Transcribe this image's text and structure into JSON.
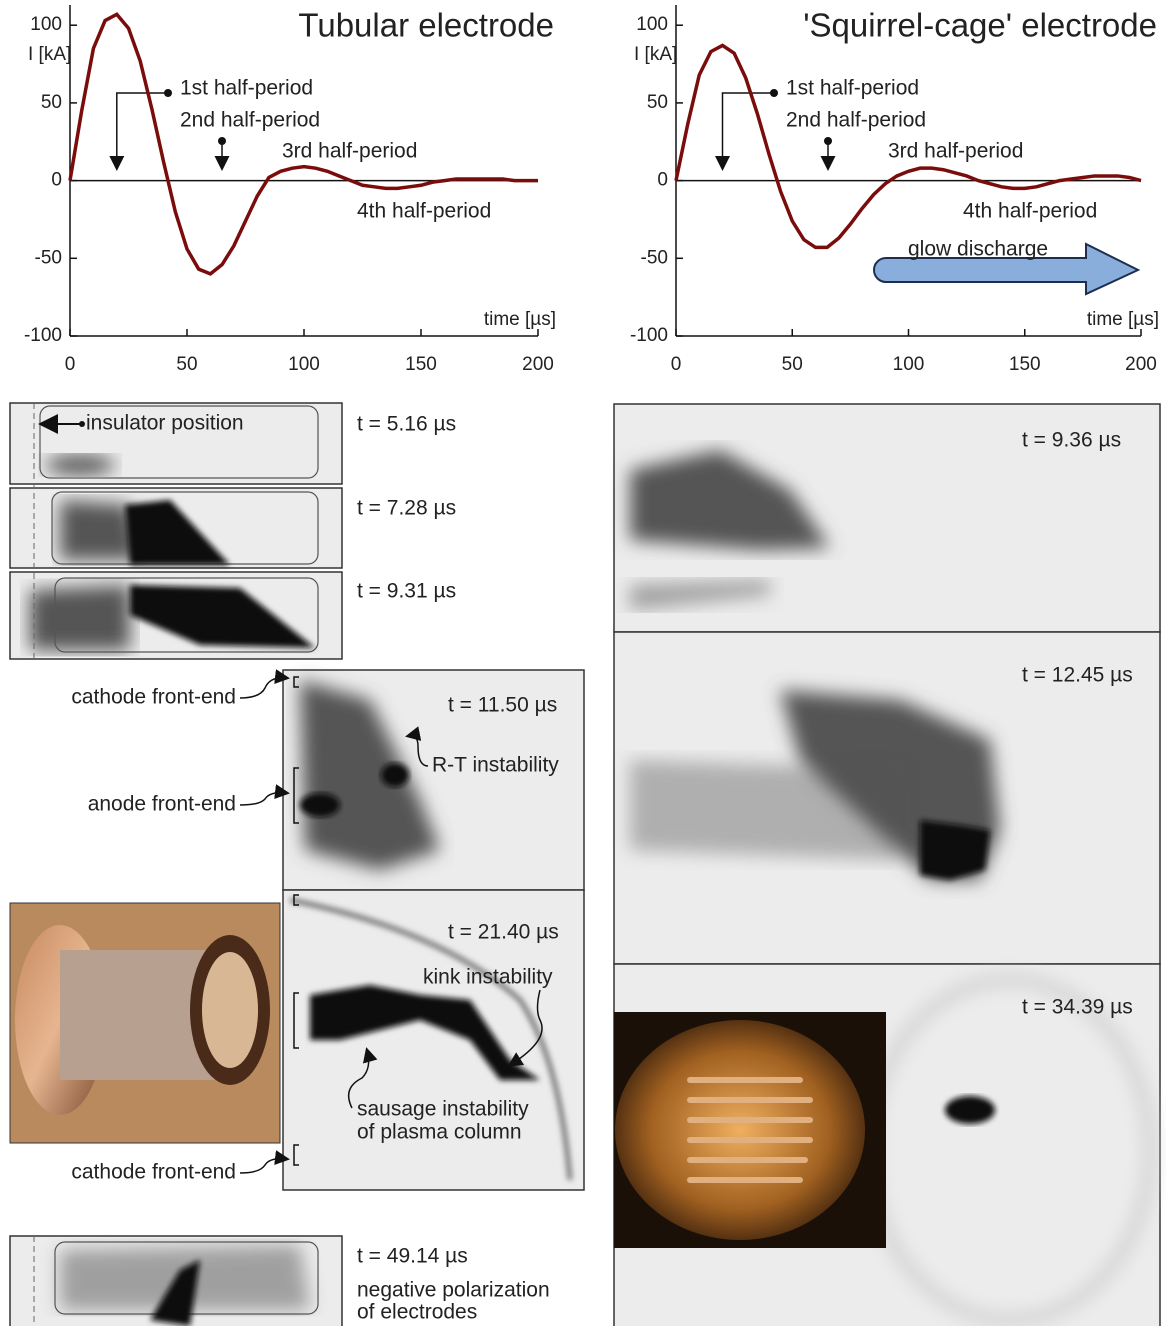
{
  "chart_data": [
    {
      "type": "line",
      "title": "Tubular electrode",
      "y_label": "I [kA]",
      "x_label": "time [µs]",
      "x": [
        0,
        5,
        10,
        15,
        20,
        25,
        30,
        35,
        40,
        45,
        50,
        55,
        60,
        65,
        70,
        75,
        80,
        85,
        90,
        95,
        100,
        105,
        110,
        115,
        120,
        125,
        130,
        135,
        140,
        145,
        150,
        155,
        160,
        165,
        170,
        175,
        180,
        185,
        190,
        195,
        200
      ],
      "values": [
        0,
        45,
        85,
        103,
        107,
        98,
        77,
        46,
        12,
        -20,
        -44,
        -57,
        -60,
        -54,
        -42,
        -26,
        -10,
        2,
        6,
        8,
        9,
        8,
        6,
        3,
        0,
        -3,
        -4,
        -5,
        -5,
        -4,
        -3,
        -1,
        0,
        1,
        1,
        1,
        1,
        1,
        0,
        0,
        0
      ],
      "color": "#7a0c0c",
      "annotations": [
        "1st half-period",
        "2nd half-period",
        "3rd half-period",
        "4th half-period"
      ],
      "xlim": [
        0,
        200
      ],
      "ylim": [
        -100,
        113
      ],
      "xticks": [
        0,
        50,
        100,
        150,
        200
      ],
      "yticks": [
        100,
        50,
        0,
        -50,
        -100
      ]
    },
    {
      "type": "line",
      "title": "'Squirrel-cage' electrode",
      "y_label": "I [kA]",
      "x_label": "time [µs]",
      "x": [
        0,
        5,
        10,
        15,
        20,
        25,
        30,
        35,
        40,
        45,
        50,
        55,
        60,
        65,
        70,
        75,
        80,
        85,
        90,
        95,
        100,
        105,
        110,
        115,
        120,
        125,
        130,
        135,
        140,
        145,
        150,
        155,
        160,
        165,
        170,
        175,
        180,
        185,
        190,
        195,
        200
      ],
      "values": [
        0,
        36,
        68,
        83,
        87,
        82,
        66,
        43,
        17,
        -7,
        -26,
        -38,
        -43,
        -43,
        -37,
        -28,
        -18,
        -9,
        -2,
        3,
        6,
        8,
        8,
        7,
        5,
        3,
        0,
        -2,
        -4,
        -5,
        -5,
        -4,
        -2,
        0,
        1,
        2,
        3,
        3,
        3,
        2,
        0
      ],
      "color": "#7a0c0c",
      "annotations": [
        "1st half-period",
        "2nd half-period",
        "3rd half-period",
        "4th half-period",
        "glow discharge"
      ],
      "xlim": [
        0,
        200
      ],
      "ylim": [
        -100,
        113
      ],
      "xticks": [
        0,
        50,
        100,
        150,
        200
      ],
      "yticks": [
        100,
        50,
        0,
        -50,
        -100
      ]
    }
  ],
  "panels": {
    "left": {
      "times": [
        "t = 5.16 µs",
        "t = 7.28 µs",
        "t = 9.31 µs",
        "t = 11.50 µs",
        "t = 21.40 µs",
        "t = 49.14 µs"
      ],
      "labels": [
        "insulator position",
        "cathode front-end",
        "anode front-end",
        "R-T instability",
        "kink instability",
        "sausage instability",
        "of plasma column",
        "cathode front-end",
        "negative polarization",
        "of electrodes"
      ]
    },
    "right": {
      "times": [
        "t = 9.36 µs",
        "t = 12.45 µs",
        "t = 34.39 µs"
      ]
    }
  }
}
